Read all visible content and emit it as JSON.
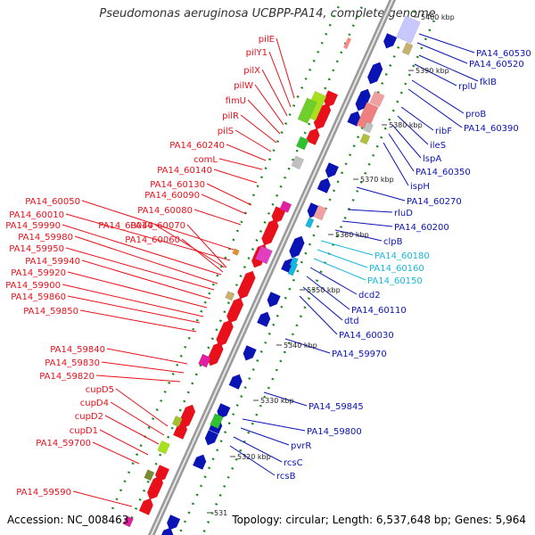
{
  "title": "Pseudomonas aeruginosa UCBPP-PA14, complete genome",
  "accession": "Accession: NC_008463",
  "info": "Topology: circular; Length: 6,537,648 bp; Genes: 5,964",
  "colors": {
    "left": "#e8101a",
    "right_blue": "#0a14b5",
    "right_cyan": "#16b8dc"
  },
  "ticks": [
    {
      "text": "5400 kbp"
    },
    {
      "text": "5390 kbp"
    },
    {
      "text": "5380 kbp"
    },
    {
      "text": "5370 kbp"
    },
    {
      "text": "5360 kbp"
    },
    {
      "text": "5350 kbp"
    },
    {
      "text": "5340 kbp"
    },
    {
      "text": "5330 kbp"
    },
    {
      "text": "5320 kbp"
    },
    {
      "text": "531"
    }
  ],
  "left_labels": [
    {
      "text": "pilE"
    },
    {
      "text": "pilY1"
    },
    {
      "text": "pilX"
    },
    {
      "text": "pilW"
    },
    {
      "text": "fimU"
    },
    {
      "text": "pilR"
    },
    {
      "text": "pilS"
    },
    {
      "text": "PA14_60240"
    },
    {
      "text": "comL"
    },
    {
      "text": "PA14_60140"
    },
    {
      "text": "PA14_60130"
    },
    {
      "text": "PA14_60090"
    },
    {
      "text": "PA14_60080"
    },
    {
      "text": "PA14_60050"
    },
    {
      "text": "PA14_60010"
    },
    {
      "text": "PA14_60040"
    },
    {
      "text": "PA14_60070"
    },
    {
      "text": "PA14_59990"
    },
    {
      "text": "PA14_60060"
    },
    {
      "text": "PA14_59980"
    },
    {
      "text": "PA14_59950"
    },
    {
      "text": "PA14_59940"
    },
    {
      "text": "PA14_59920"
    },
    {
      "text": "PA14_59900"
    },
    {
      "text": "PA14_59860"
    },
    {
      "text": "PA14_59850"
    },
    {
      "text": "PA14_59840"
    },
    {
      "text": "PA14_59830"
    },
    {
      "text": "PA14_59820"
    },
    {
      "text": "cupD5"
    },
    {
      "text": "cupD4"
    },
    {
      "text": "cupD2"
    },
    {
      "text": "cupD1"
    },
    {
      "text": "PA14_59700"
    },
    {
      "text": "PA14_59590"
    }
  ],
  "right_labels": [
    {
      "text": "PA14_60530"
    },
    {
      "text": "PA14_60520"
    },
    {
      "text": "fklB"
    },
    {
      "text": "rplU"
    },
    {
      "text": "proB"
    },
    {
      "text": "PA14_60390"
    },
    {
      "text": "ribF"
    },
    {
      "text": "ileS"
    },
    {
      "text": "lspA"
    },
    {
      "text": "PA14_60350"
    },
    {
      "text": "ispH"
    },
    {
      "text": "PA14_60270"
    },
    {
      "text": "rluD"
    },
    {
      "text": "PA14_60200"
    },
    {
      "text": "clpB"
    },
    {
      "text": "PA14_60180"
    },
    {
      "text": "PA14_60160"
    },
    {
      "text": "PA14_60150"
    },
    {
      "text": "dcd2"
    },
    {
      "text": "PA14_60110"
    },
    {
      "text": "dtd"
    },
    {
      "text": "PA14_60030"
    },
    {
      "text": "PA14_59970"
    },
    {
      "text": "PA14_59845"
    },
    {
      "text": "PA14_59800"
    },
    {
      "text": "pvrR"
    },
    {
      "text": "rcsC"
    },
    {
      "text": "rcsB"
    }
  ]
}
